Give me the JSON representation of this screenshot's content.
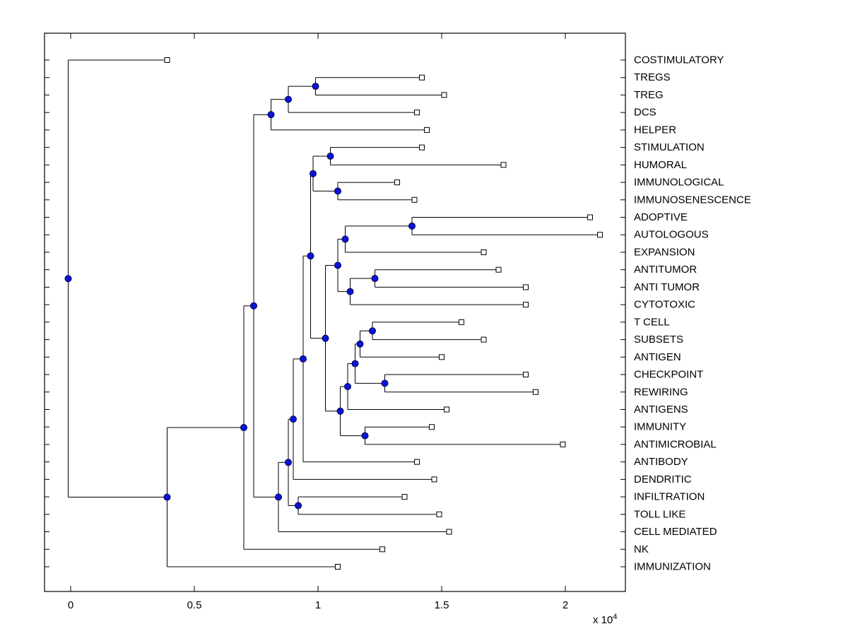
{
  "figure": {
    "background": "#ffffff",
    "exponent_label": {
      "prefix": "x 10",
      "exponent": "4"
    }
  },
  "axes": {
    "box_color": "#000000",
    "xlim": [
      -0.106,
      2.243
    ]
  },
  "style": {
    "line_color": "#000000",
    "branch_marker_fill": "#0b14d6",
    "branch_marker_edge": "#000050",
    "leaf_marker_fill": "#ffffff",
    "leaf_marker_edge": "#000000",
    "label_color": "#000000"
  },
  "chart_data": {
    "type": "dendrogram",
    "orientation": "horizontal",
    "units": "distance in multiples of 10^4",
    "x_ticks": [
      {
        "value": 0,
        "label": "0"
      },
      {
        "value": 0.5,
        "label": "0.5"
      },
      {
        "value": 1,
        "label": "1"
      },
      {
        "value": 1.5,
        "label": "1.5"
      },
      {
        "value": 2,
        "label": "2"
      }
    ],
    "leaf_order": [
      "COSTIMULATORY",
      "TREGS",
      "TREG",
      "DCS",
      "HELPER",
      "STIMULATION",
      "HUMORAL",
      "IMMUNOLOGICAL",
      "IMMUNOSENESCENCE",
      "ADOPTIVE",
      "AUTOLOGOUS",
      "EXPANSION",
      "ANTITUMOR",
      "ANTI TUMOR",
      "CYTOTOXIC",
      "T CELL",
      "SUBSETS",
      "ANTIGEN",
      "CHECKPOINT",
      "REWIRING",
      "ANTIGENS",
      "IMMUNITY",
      "ANTIMICROBIAL",
      "ANTIBODY",
      "DENDRITIC",
      "INFILTRATION",
      "TOLL LIKE",
      "CELL MEDIATED",
      "NK",
      "IMMUNIZATION"
    ],
    "tree": {
      "x": -0.01,
      "c": [
        {
          "l": "COSTIMULATORY",
          "x": 0.39
        },
        {
          "x": 0.39,
          "c": [
            {
              "x": 0.7,
              "c": [
                {
                  "x": 0.74,
                  "c": [
                    {
                      "x": 0.81,
                      "c": [
                        {
                          "x": 0.88,
                          "c": [
                            {
                              "x": 0.99,
                              "c": [
                                {
                                  "l": "TREGS",
                                  "x": 1.42
                                },
                                {
                                  "l": "TREG",
                                  "x": 1.51
                                }
                              ]
                            },
                            {
                              "l": "DCS",
                              "x": 1.4
                            }
                          ]
                        },
                        {
                          "l": "HELPER",
                          "x": 1.44
                        }
                      ]
                    },
                    {
                      "x": 0.84,
                      "c": [
                        {
                          "x": 0.88,
                          "c": [
                            {
                              "x": 0.9,
                              "c": [
                                {
                                  "x": 0.94,
                                  "c": [
                                    {
                                      "x": 0.97,
                                      "c": [
                                        {
                                          "x": 0.98,
                                          "c": [
                                            {
                                              "x": 1.05,
                                              "c": [
                                                {
                                                  "l": "STIMULATION",
                                                  "x": 1.42
                                                },
                                                {
                                                  "l": "HUMORAL",
                                                  "x": 1.75
                                                }
                                              ]
                                            },
                                            {
                                              "x": 1.08,
                                              "c": [
                                                {
                                                  "l": "IMMUNOLOGICAL",
                                                  "x": 1.32
                                                },
                                                {
                                                  "l": "IMMUNOSENESCENCE",
                                                  "x": 1.39
                                                }
                                              ]
                                            }
                                          ]
                                        },
                                        {
                                          "x": 1.03,
                                          "c": [
                                            {
                                              "x": 1.08,
                                              "c": [
                                                {
                                                  "x": 1.11,
                                                  "c": [
                                                    {
                                                      "x": 1.38,
                                                      "c": [
                                                        {
                                                          "l": "ADOPTIVE",
                                                          "x": 2.1
                                                        },
                                                        {
                                                          "l": "AUTOLOGOUS",
                                                          "x": 2.14
                                                        }
                                                      ]
                                                    },
                                                    {
                                                      "l": "EXPANSION",
                                                      "x": 1.67
                                                    }
                                                  ]
                                                },
                                                {
                                                  "x": 1.13,
                                                  "c": [
                                                    {
                                                      "x": 1.23,
                                                      "c": [
                                                        {
                                                          "l": "ANTITUMOR",
                                                          "x": 1.73
                                                        },
                                                        {
                                                          "l": "ANTI TUMOR",
                                                          "x": 1.84
                                                        }
                                                      ]
                                                    },
                                                    {
                                                      "l": "CYTOTOXIC",
                                                      "x": 1.84
                                                    }
                                                  ]
                                                }
                                              ]
                                            },
                                            {
                                              "x": 1.09,
                                              "c": [
                                                {
                                                  "x": 1.12,
                                                  "c": [
                                                    {
                                                      "x": 1.15,
                                                      "c": [
                                                        {
                                                          "x": 1.17,
                                                          "c": [
                                                            {
                                                              "x": 1.22,
                                                              "c": [
                                                                {
                                                                  "l": "T CELL",
                                                                  "x": 1.58
                                                                },
                                                                {
                                                                  "l": "SUBSETS",
                                                                  "x": 1.67
                                                                }
                                                              ]
                                                            },
                                                            {
                                                              "l": "ANTIGEN",
                                                              "x": 1.5
                                                            }
                                                          ]
                                                        },
                                                        {
                                                          "x": 1.27,
                                                          "c": [
                                                            {
                                                              "l": "CHECKPOINT",
                                                              "x": 1.84
                                                            },
                                                            {
                                                              "l": "REWIRING",
                                                              "x": 1.88
                                                            }
                                                          ]
                                                        }
                                                      ]
                                                    },
                                                    {
                                                      "l": "ANTIGENS",
                                                      "x": 1.52
                                                    }
                                                  ]
                                                },
                                                {
                                                  "x": 1.19,
                                                  "c": [
                                                    {
                                                      "l": "IMMUNITY",
                                                      "x": 1.46
                                                    },
                                                    {
                                                      "l": "ANTIMICROBIAL",
                                                      "x": 1.99
                                                    }
                                                  ]
                                                }
                                              ]
                                            }
                                          ]
                                        }
                                      ]
                                    },
                                    {
                                      "l": "ANTIBODY",
                                      "x": 1.4
                                    }
                                  ]
                                },
                                {
                                  "l": "DENDRITIC",
                                  "x": 1.47
                                }
                              ]
                            },
                            {
                              "x": 0.92,
                              "c": [
                                {
                                  "l": "INFILTRATION",
                                  "x": 1.35
                                },
                                {
                                  "l": "TOLL LIKE",
                                  "x": 1.49
                                }
                              ]
                            }
                          ]
                        },
                        {
                          "l": "CELL MEDIATED",
                          "x": 1.53
                        }
                      ]
                    }
                  ]
                },
                {
                  "l": "NK",
                  "x": 1.26
                }
              ]
            },
            {
              "l": "IMMUNIZATION",
              "x": 1.08
            }
          ]
        }
      ]
    }
  }
}
